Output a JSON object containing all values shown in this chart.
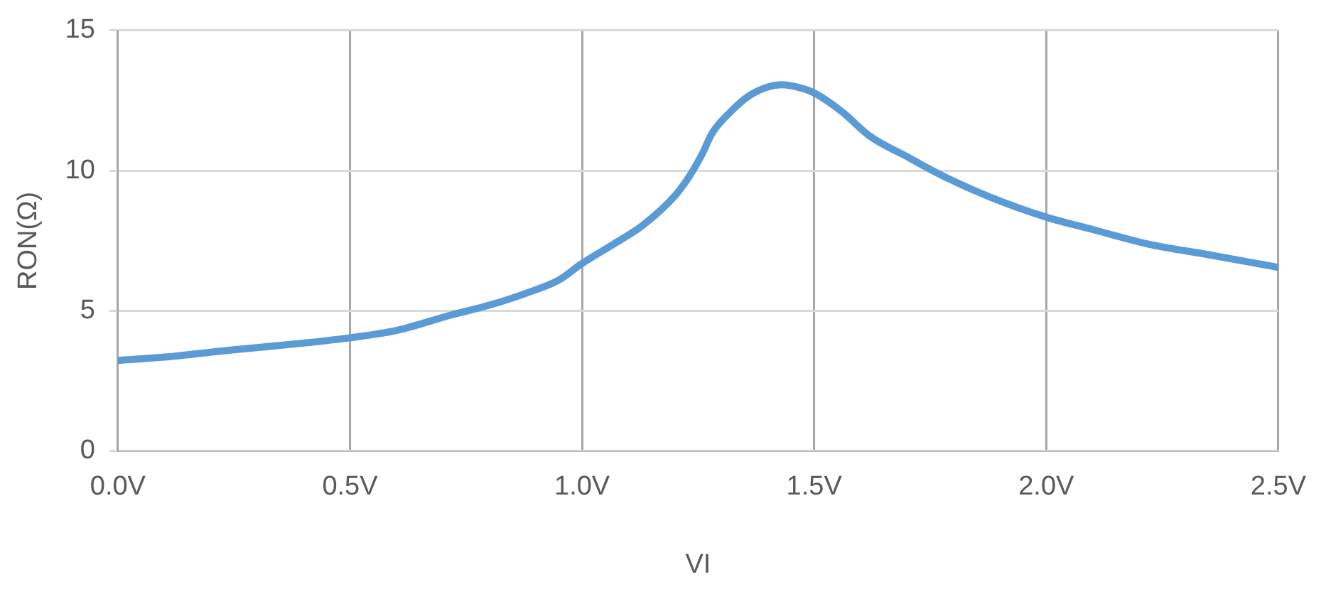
{
  "chart_data": {
    "type": "line",
    "xlabel": "VI",
    "ylabel": "RON(Ω)",
    "x": [
      0,
      0.1,
      0.25,
      0.4,
      0.5,
      0.6,
      0.72,
      0.8,
      0.88,
      0.95,
      1.0,
      1.07,
      1.13,
      1.2,
      1.23,
      1.26,
      1.28,
      1.32,
      1.36,
      1.4,
      1.43,
      1.47,
      1.5,
      1.56,
      1.62,
      1.7,
      1.78,
      1.88,
      2.0,
      2.1,
      2.22,
      2.35,
      2.5
    ],
    "series": [
      {
        "color": "#5b9bd5",
        "values": [
          3.23,
          3.35,
          3.61,
          3.85,
          4.04,
          4.3,
          4.86,
          5.2,
          5.63,
          6.1,
          6.69,
          7.4,
          8.04,
          9.1,
          9.77,
          10.63,
          11.33,
          12.1,
          12.67,
          12.98,
          13.06,
          12.95,
          12.77,
          12.1,
          11.23,
          10.5,
          9.79,
          9.05,
          8.34,
          7.9,
          7.38,
          7.0,
          6.55
        ]
      }
    ],
    "xlim": [
      0,
      2.5
    ],
    "xticks": [
      {
        "value": 0,
        "label": "0.0V"
      },
      {
        "value": 0.5,
        "label": "0.5V"
      },
      {
        "value": 1,
        "label": "1.0V"
      },
      {
        "value": 1.5,
        "label": "1.5V"
      },
      {
        "value": 2,
        "label": "2.0V"
      },
      {
        "value": 2.5,
        "label": "2.5V"
      }
    ],
    "ylim": [
      0,
      15
    ],
    "yticks": [
      0,
      5,
      10,
      15
    ],
    "grid": true,
    "legend": false,
    "marker": "none",
    "line_style": "solid"
  }
}
